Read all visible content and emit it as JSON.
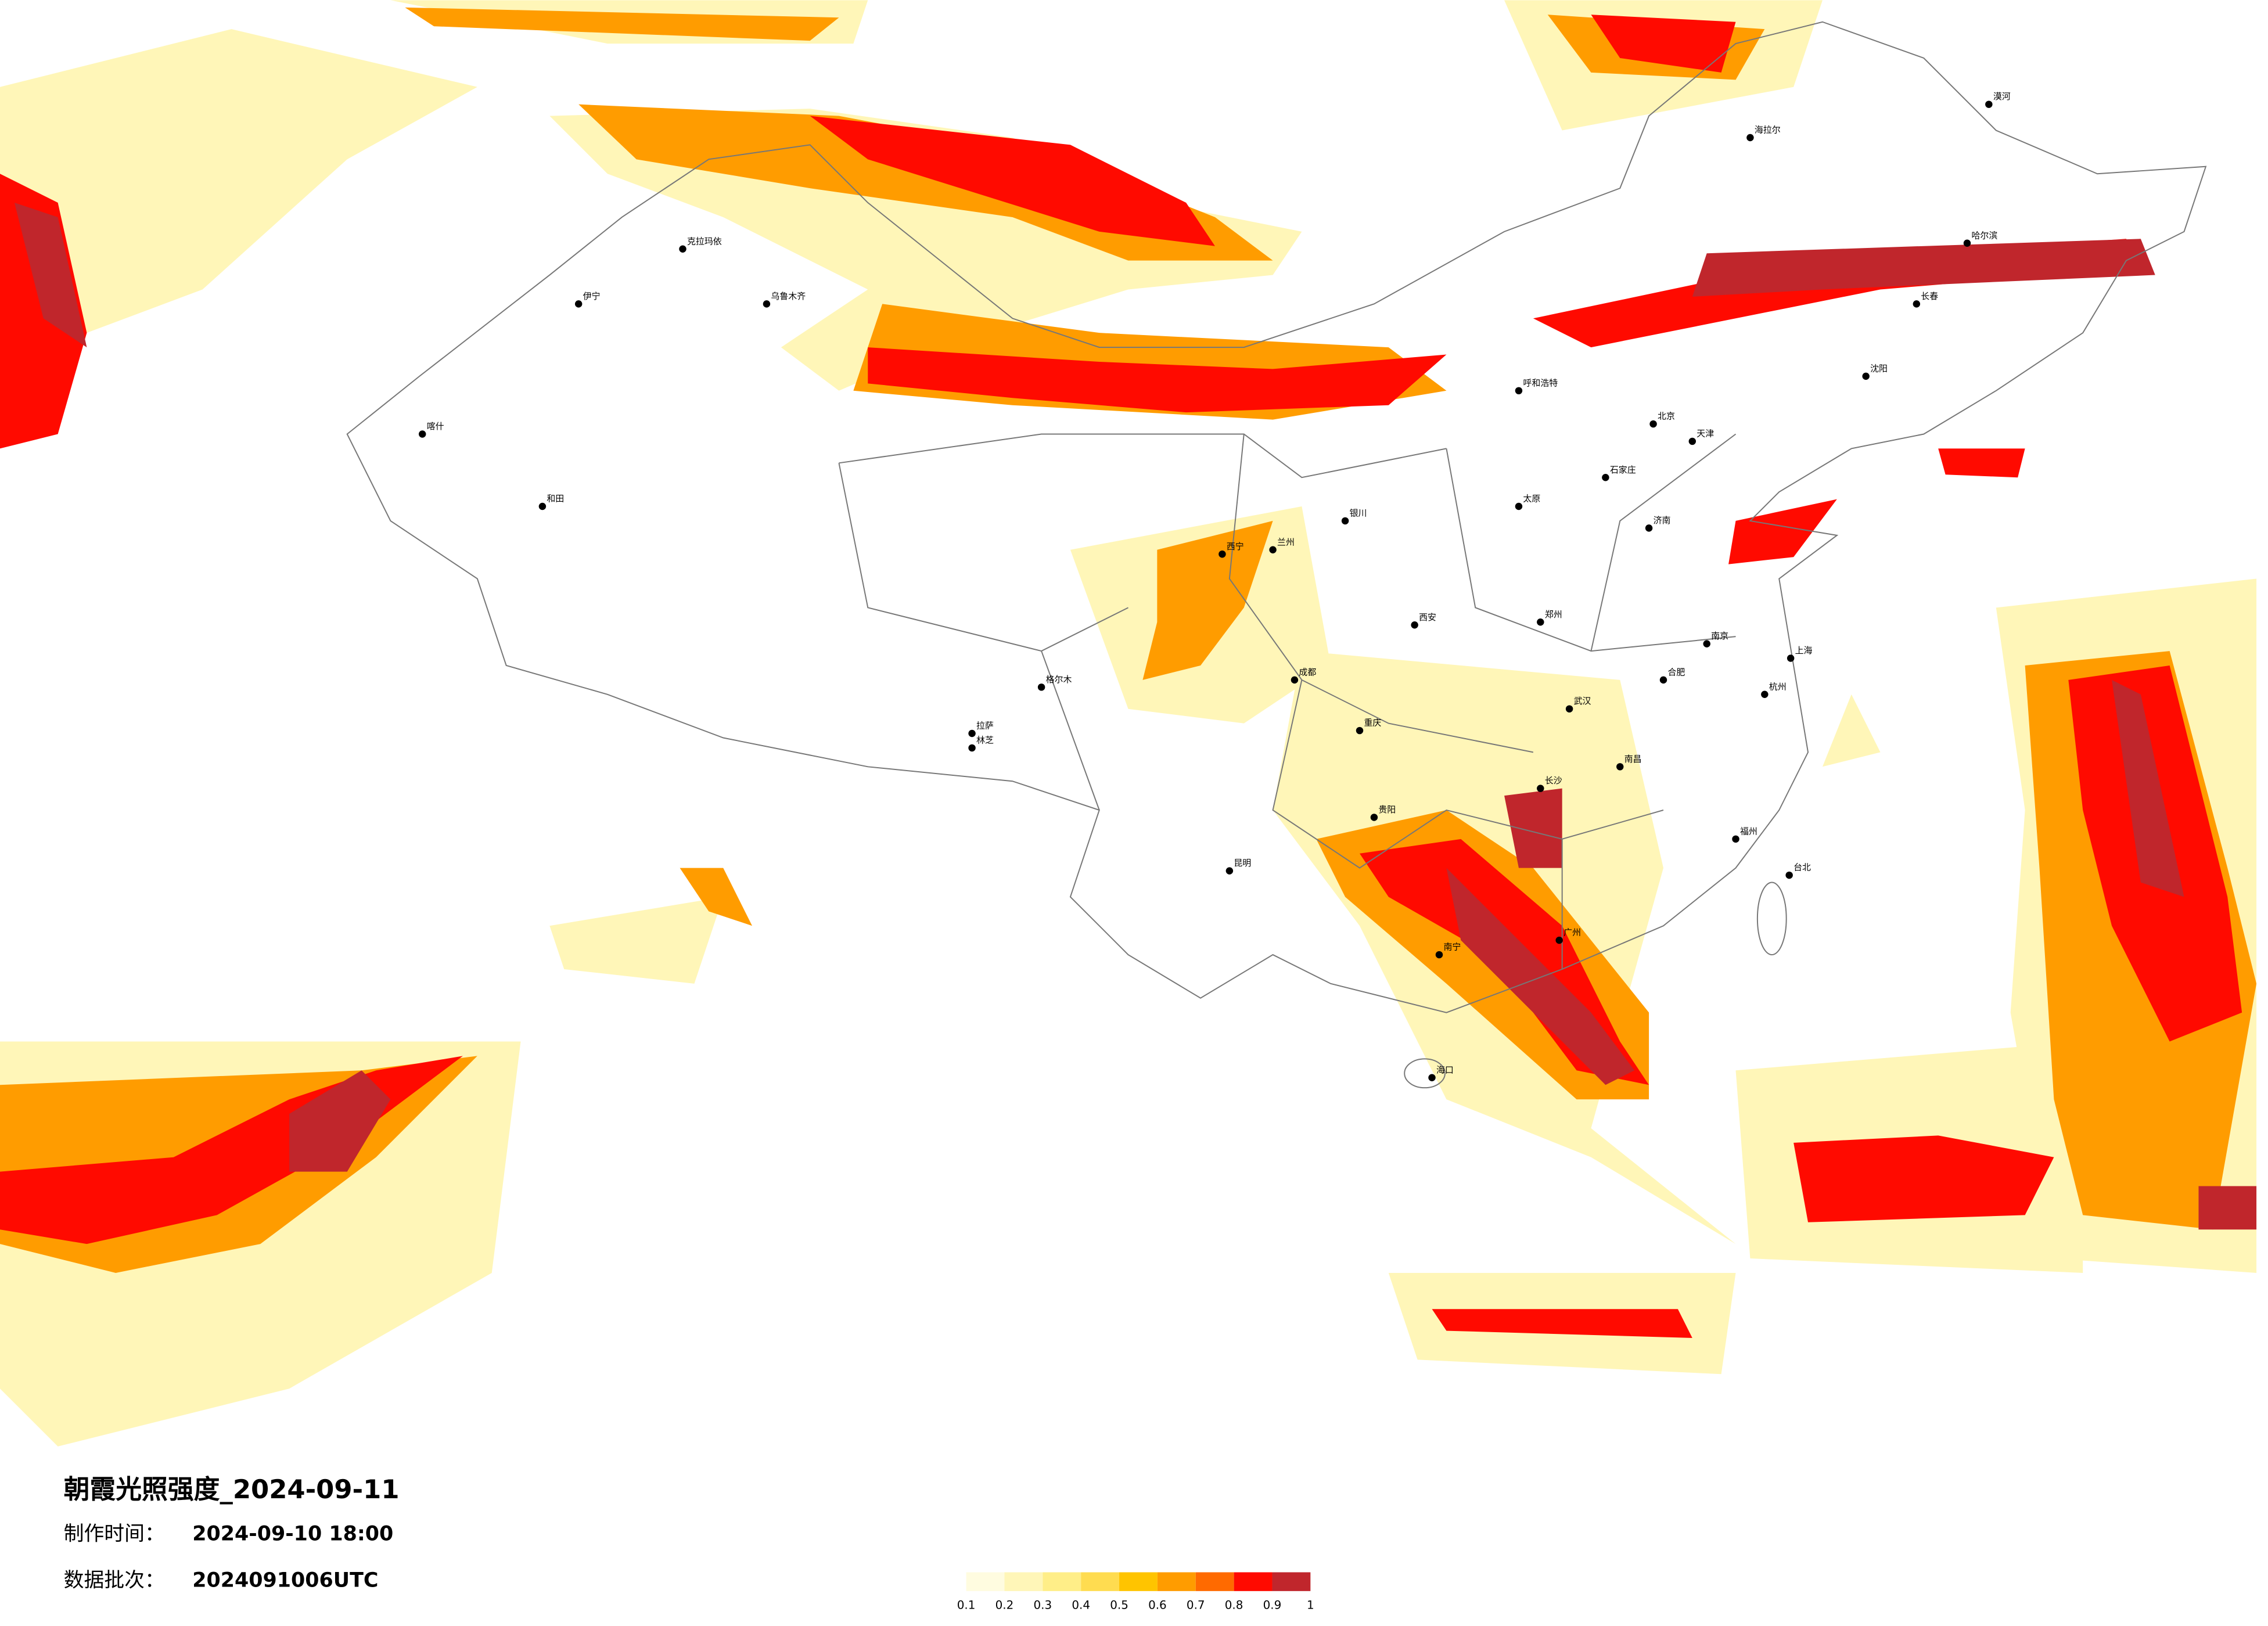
{
  "title": "朝霞光照强度_2024-09-11",
  "production_time": {
    "label": "制作时间：",
    "value": "2024-09-10 18:00"
  },
  "data_batch": {
    "label": "数据批次：",
    "value": "2024091006UTC"
  },
  "colorbar": {
    "ticks": [
      0.1,
      0.2,
      0.3,
      0.4,
      0.5,
      0.6,
      0.7,
      0.8,
      0.9,
      1
    ],
    "colors": [
      "#fffce0",
      "#fff6b8",
      "#ffee88",
      "#ffdc50",
      "#ffc400",
      "#ff9c00",
      "#ff6a00",
      "#ff0a00",
      "#c0262c"
    ]
  },
  "cities": [
    "北京",
    "上海",
    "广州",
    "成都",
    "重庆",
    "西安",
    "武汉",
    "乌鲁木齐",
    "拉萨",
    "哈尔滨",
    "沈阳",
    "昆明",
    "南宁",
    "兰州",
    "郑州",
    "长沙",
    "南昌",
    "福州",
    "海口",
    "呼和浩特",
    "银川",
    "西宁",
    "贵阳",
    "合肥",
    "杭州",
    "南京",
    "济南",
    "石家庄",
    "太原",
    "天津",
    "长春",
    "喀什",
    "和田",
    "海拉尔",
    "漠河",
    "台北",
    "伊宁",
    "克拉玛依",
    "格尔木",
    "林芝"
  ]
}
